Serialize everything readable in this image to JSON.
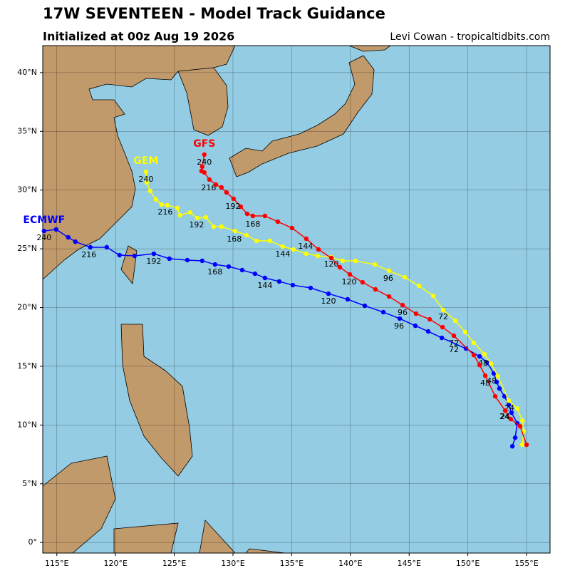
{
  "chart_data": {
    "type": "track",
    "title": "17W SEVENTEEN - Model Track Guidance",
    "subtitle": "Initialized at 00z Aug 19 2026",
    "credit": "Levi Cowan - tropicaltidbits.com",
    "xlim": [
      113.8,
      157.0
    ],
    "ylim": [
      -0.9,
      42.3
    ],
    "xticks": [
      {
        "value": 115,
        "label": "115°E"
      },
      {
        "value": 120,
        "label": "120°E"
      },
      {
        "value": 125,
        "label": "125°E"
      },
      {
        "value": 130,
        "label": "130°E"
      },
      {
        "value": 135,
        "label": "135°E"
      },
      {
        "value": 140,
        "label": "140°E"
      },
      {
        "value": 145,
        "label": "145°E"
      },
      {
        "value": 150,
        "label": "150°E"
      },
      {
        "value": 155,
        "label": "155°E"
      }
    ],
    "yticks": [
      {
        "value": 0,
        "label": "0°"
      },
      {
        "value": 5,
        "label": "5°N"
      },
      {
        "value": 10,
        "label": "10°N"
      },
      {
        "value": 15,
        "label": "15°N"
      },
      {
        "value": 20,
        "label": "20°N"
      },
      {
        "value": 25,
        "label": "25°N"
      },
      {
        "value": 30,
        "label": "30°N"
      },
      {
        "value": 35,
        "label": "35°N"
      },
      {
        "value": 40,
        "label": "40°N"
      }
    ],
    "grid": true,
    "series": [
      {
        "name": "ECMWF",
        "color": "#0000ff",
        "x": [
          153.79,
          154.03,
          154.21,
          153.72,
          153.48,
          153.12,
          152.69,
          152.45,
          152.21,
          151.66,
          151.0,
          149.84,
          147.78,
          146.62,
          145.53,
          144.2,
          142.8,
          141.22,
          139.76,
          138.13,
          136.61,
          135.09,
          133.94,
          132.72,
          131.87,
          130.78,
          129.63,
          128.47,
          127.38,
          126.11,
          124.59,
          123.26,
          121.62,
          120.34,
          119.25,
          117.85,
          116.58,
          115.97,
          114.94,
          113.91
        ],
        "y": [
          8.19,
          8.92,
          10.14,
          11.05,
          11.71,
          12.44,
          13.11,
          13.66,
          14.39,
          15.3,
          15.84,
          16.51,
          17.42,
          17.97,
          18.45,
          19.06,
          19.61,
          20.15,
          20.7,
          21.18,
          21.67,
          21.91,
          22.22,
          22.52,
          22.88,
          23.19,
          23.49,
          23.67,
          23.98,
          24.04,
          24.16,
          24.58,
          24.4,
          24.46,
          25.13,
          25.13,
          25.61,
          25.98,
          26.65,
          26.52
        ],
        "hour_labels": [
          {
            "hour": 24,
            "lon": 153.18,
            "lat": 10.68
          },
          {
            "hour": 48,
            "lon": 152.03,
            "lat": 13.72
          },
          {
            "hour": 72,
            "lon": 148.81,
            "lat": 16.39
          },
          {
            "hour": 96,
            "lon": 144.14,
            "lat": 18.39
          },
          {
            "hour": 120,
            "lon": 138.13,
            "lat": 20.52
          },
          {
            "hour": 144,
            "lon": 132.72,
            "lat": 21.85
          },
          {
            "hour": 168,
            "lon": 128.47,
            "lat": 23.0
          },
          {
            "hour": 192,
            "lon": 123.26,
            "lat": 23.92
          },
          {
            "hour": 216,
            "lon": 117.73,
            "lat": 24.46
          },
          {
            "hour": 240,
            "lon": 113.91,
            "lat": 25.92
          }
        ]
      },
      {
        "name": "GEM",
        "color": "#ffff00",
        "x": [
          154.64,
          154.76,
          154.64,
          154.21,
          153.48,
          152.57,
          151.97,
          151.42,
          150.51,
          149.78,
          148.93,
          147.9,
          147.05,
          145.83,
          144.62,
          143.29,
          142.07,
          140.43,
          139.34,
          138.37,
          137.22,
          136.24,
          135.15,
          134.24,
          133.15,
          132.0,
          131.15,
          130.17,
          129.02,
          128.35,
          127.69,
          126.96,
          126.35,
          125.5,
          125.26,
          124.41,
          123.92,
          123.44,
          122.95,
          122.65,
          122.59
        ],
        "y": [
          8.32,
          9.47,
          10.38,
          11.41,
          12.08,
          14.14,
          15.23,
          16.02,
          17.0,
          17.91,
          18.88,
          19.79,
          21.0,
          21.85,
          22.58,
          23.13,
          23.67,
          23.98,
          23.98,
          24.28,
          24.4,
          24.58,
          24.95,
          25.19,
          25.68,
          25.68,
          26.16,
          26.52,
          26.89,
          26.89,
          27.68,
          27.62,
          28.1,
          27.86,
          28.47,
          28.71,
          28.77,
          29.2,
          29.92,
          30.65,
          31.56
        ],
        "hour_labels": [
          {
            "hour": 24,
            "lon": 153.54,
            "lat": 11.41
          },
          {
            "hour": 48,
            "lon": 151.3,
            "lat": 15.23
          },
          {
            "hour": 72,
            "lon": 147.9,
            "lat": 19.18
          },
          {
            "hour": 96,
            "lon": 143.22,
            "lat": 22.46
          },
          {
            "hour": 120,
            "lon": 138.37,
            "lat": 23.67
          },
          {
            "hour": 144,
            "lon": 134.24,
            "lat": 24.52
          },
          {
            "hour": 168,
            "lon": 130.11,
            "lat": 25.8
          },
          {
            "hour": 192,
            "lon": 126.9,
            "lat": 27.01
          },
          {
            "hour": 216,
            "lon": 124.23,
            "lat": 28.1
          },
          {
            "hour": 240,
            "lon": 122.59,
            "lat": 30.9
          }
        ]
      },
      {
        "name": "GFS",
        "color": "#ff0000",
        "x": [
          155.0,
          154.45,
          153.66,
          153.18,
          152.33,
          151.48,
          151.0,
          150.51,
          148.81,
          147.84,
          146.75,
          145.59,
          144.44,
          143.29,
          142.13,
          141.04,
          139.95,
          139.1,
          138.37,
          137.28,
          136.24,
          135.03,
          133.82,
          132.72,
          131.69,
          131.21,
          130.66,
          130.05,
          129.45,
          129.02,
          128.54,
          127.99,
          127.56,
          127.32,
          127.38,
          127.56
        ],
        "y": [
          8.32,
          9.89,
          10.5,
          11.23,
          12.44,
          14.2,
          15.11,
          15.96,
          17.6,
          18.33,
          19.0,
          19.48,
          20.21,
          20.94,
          21.55,
          22.15,
          22.82,
          23.43,
          24.22,
          24.95,
          25.86,
          26.77,
          27.31,
          27.8,
          27.8,
          27.98,
          28.59,
          29.26,
          29.8,
          30.23,
          30.47,
          30.9,
          31.5,
          31.62,
          31.99,
          33.02
        ],
        "hour_labels": [
          {
            "hour": 24,
            "lon": 153.12,
            "lat": 10.68
          },
          {
            "hour": 48,
            "lon": 151.48,
            "lat": 13.54
          },
          {
            "hour": 72,
            "lon": 148.81,
            "lat": 16.93
          },
          {
            "hour": 96,
            "lon": 144.44,
            "lat": 19.54
          },
          {
            "hour": 120,
            "lon": 139.89,
            "lat": 22.15
          },
          {
            "hour": 144,
            "lon": 136.18,
            "lat": 25.19
          },
          {
            "hour": 168,
            "lon": 131.69,
            "lat": 27.07
          },
          {
            "hour": 192,
            "lon": 130.0,
            "lat": 28.59
          },
          {
            "hour": 216,
            "lon": 127.93,
            "lat": 30.17
          },
          {
            "hour": 240,
            "lon": 127.56,
            "lat": 32.35
          }
        ]
      }
    ]
  }
}
